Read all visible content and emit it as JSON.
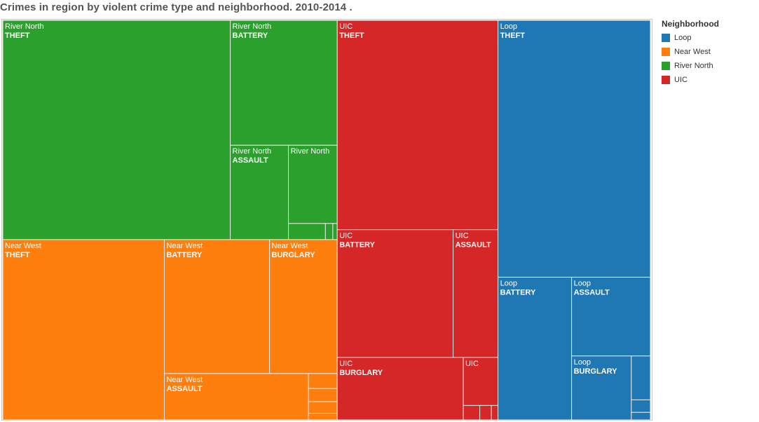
{
  "title": "Crimes in region by violent crime type and neighborhood. 2010-2014 .",
  "legend": {
    "title": "Neighborhood",
    "items": [
      {
        "label": "Loop",
        "color": "#1f77b4"
      },
      {
        "label": "Near West",
        "color": "#ff7f0e"
      },
      {
        "label": "River North",
        "color": "#2ca02c"
      },
      {
        "label": "UIC",
        "color": "#d62728"
      }
    ]
  },
  "chart_data": {
    "type": "treemap",
    "title": "Crimes in region by violent crime type and neighborhood. 2010-2014 .",
    "unit": "relative share of total area (%)",
    "groups": [
      {
        "name": "River North",
        "color": "#2ca02c",
        "children": [
          {
            "name": "THEFT",
            "value": 20.9,
            "label": true
          },
          {
            "name": "BATTERY",
            "value": 5.6,
            "label": true
          },
          {
            "name": "ASSAULT",
            "value": 2.3,
            "label": true
          },
          {
            "name": "",
            "value": 1.6,
            "label": true
          },
          {
            "name": "",
            "value": 0.25
          },
          {
            "name": "",
            "value": 0.05
          },
          {
            "name": "",
            "value": 0.03
          }
        ]
      },
      {
        "name": "Near West",
        "color": "#ff7f0e",
        "children": [
          {
            "name": "THEFT",
            "value": 12.2,
            "label": true
          },
          {
            "name": "BATTERY",
            "value": 5.9,
            "label": true
          },
          {
            "name": "BURGLARY",
            "value": 3.8,
            "label": true
          },
          {
            "name": "ASSAULT",
            "value": 2.8,
            "label": true
          },
          {
            "name": "",
            "value": 0.18
          },
          {
            "name": "",
            "value": 0.16
          },
          {
            "name": "",
            "value": 0.14
          },
          {
            "name": "",
            "value": 0.08
          }
        ]
      },
      {
        "name": "UIC",
        "color": "#d62728",
        "children": [
          {
            "name": "THEFT",
            "value": 14.1,
            "label": true
          },
          {
            "name": "BATTERY",
            "value": 6.2,
            "label": true
          },
          {
            "name": "ASSAULT",
            "value": 2.4,
            "label": true
          },
          {
            "name": "BURGLARY",
            "value": 3.3,
            "label": true
          },
          {
            "name": "",
            "value": 0.7,
            "label": true
          },
          {
            "name": "",
            "value": 0.1
          },
          {
            "name": "",
            "value": 0.07
          },
          {
            "name": "",
            "value": 0.04
          }
        ]
      },
      {
        "name": "Loop",
        "color": "#1f77b4",
        "children": [
          {
            "name": "THEFT",
            "value": 16.4,
            "label": true
          },
          {
            "name": "BATTERY",
            "value": 4.4,
            "label": true
          },
          {
            "name": "ASSAULT",
            "value": 2.6,
            "label": true
          },
          {
            "name": "BURGLARY",
            "value": 1.6,
            "label": true
          },
          {
            "name": "",
            "value": 0.35
          },
          {
            "name": "",
            "value": 0.1
          },
          {
            "name": "",
            "value": 0.06
          }
        ]
      }
    ]
  }
}
